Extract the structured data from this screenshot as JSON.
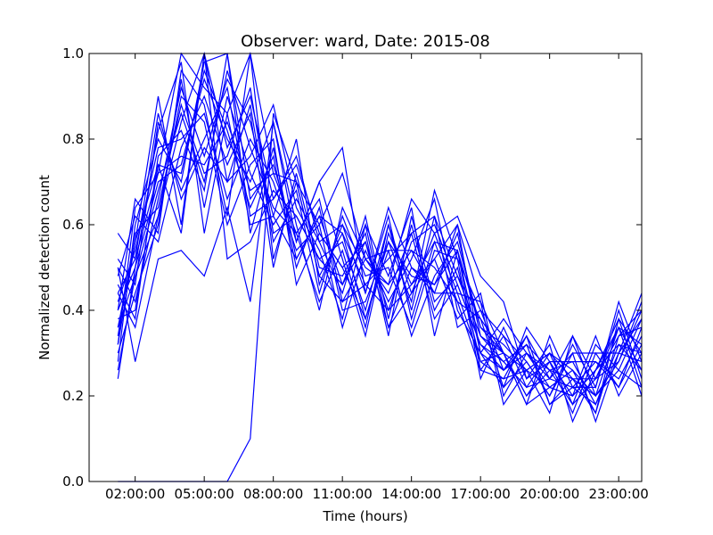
{
  "chart_data": {
    "type": "line",
    "title": "Observer: ward, Date: 2015-08",
    "xlabel": "Time (hours)",
    "ylabel": "Normalized detection count",
    "xlim": [
      0.0,
      24.0
    ],
    "ylim": [
      0.0,
      1.0
    ],
    "x_ticks": [
      {
        "value": 2,
        "label": "02:00:00"
      },
      {
        "value": 5,
        "label": "05:00:00"
      },
      {
        "value": 8,
        "label": "08:00:00"
      },
      {
        "value": 11,
        "label": "11:00:00"
      },
      {
        "value": 14,
        "label": "14:00:00"
      },
      {
        "value": 17,
        "label": "17:00:00"
      },
      {
        "value": 20,
        "label": "20:00:00"
      },
      {
        "value": 23,
        "label": "23:00:00"
      }
    ],
    "y_ticks": [
      {
        "value": 0.0,
        "label": "0.0"
      },
      {
        "value": 0.2,
        "label": "0.2"
      },
      {
        "value": 0.4,
        "label": "0.4"
      },
      {
        "value": 0.6,
        "label": "0.6"
      },
      {
        "value": 0.8,
        "label": "0.8"
      },
      {
        "value": 1.0,
        "label": "1.0"
      }
    ],
    "grid": false,
    "line_color": "#0000ff",
    "x": [
      1.25,
      2.0,
      3.0,
      4.0,
      5.0,
      6.0,
      7.0,
      8.0,
      9.0,
      10.0,
      11.0,
      12.0,
      13.0,
      14.0,
      15.0,
      16.0,
      17.0,
      18.0,
      19.0,
      20.0,
      21.0,
      22.0,
      23.0,
      24.0
    ],
    "series": [
      {
        "values": [
          0.44,
          0.52,
          0.72,
          1.0,
          0.92,
          0.86,
          1.0,
          0.72,
          0.58,
          0.66,
          0.42,
          0.52,
          0.44,
          0.58,
          0.62,
          0.48,
          0.34,
          0.3,
          0.26,
          0.22,
          0.2,
          0.26,
          0.38,
          0.3
        ]
      },
      {
        "values": [
          0.36,
          0.48,
          0.62,
          0.84,
          1.0,
          0.78,
          0.9,
          0.66,
          0.74,
          0.58,
          0.5,
          0.38,
          0.56,
          0.42,
          0.68,
          0.52,
          0.4,
          0.26,
          0.32,
          0.18,
          0.24,
          0.16,
          0.34,
          0.4
        ]
      },
      {
        "values": [
          0.28,
          0.6,
          0.8,
          0.7,
          0.98,
          1.0,
          0.58,
          0.78,
          0.52,
          0.62,
          0.46,
          0.56,
          0.36,
          0.5,
          0.44,
          0.6,
          0.3,
          0.22,
          0.36,
          0.28,
          0.16,
          0.3,
          0.22,
          0.36
        ]
      },
      {
        "values": [
          0.5,
          0.42,
          0.66,
          0.92,
          0.76,
          0.94,
          0.84,
          0.62,
          0.8,
          0.46,
          0.6,
          0.44,
          0.62,
          0.38,
          0.56,
          0.42,
          0.38,
          0.3,
          0.18,
          0.34,
          0.22,
          0.22,
          0.42,
          0.28
        ]
      },
      {
        "values": [
          0.32,
          0.56,
          0.9,
          0.6,
          1.0,
          0.7,
          0.76,
          0.88,
          0.64,
          0.54,
          0.38,
          0.6,
          0.48,
          0.64,
          0.34,
          0.54,
          0.26,
          0.34,
          0.28,
          0.2,
          0.3,
          0.14,
          0.3,
          0.44
        ]
      },
      {
        "values": [
          0.46,
          0.38,
          0.76,
          0.82,
          0.68,
          1.0,
          0.66,
          0.74,
          0.56,
          0.7,
          0.52,
          0.34,
          0.58,
          0.46,
          0.52,
          0.38,
          0.44,
          0.2,
          0.3,
          0.26,
          0.18,
          0.32,
          0.26,
          0.22
        ]
      },
      {
        "values": [
          0.4,
          0.66,
          0.58,
          0.96,
          0.88,
          0.62,
          1.0,
          0.52,
          0.7,
          0.48,
          0.58,
          0.46,
          0.4,
          0.56,
          0.6,
          0.46,
          0.32,
          0.28,
          0.22,
          0.3,
          0.26,
          0.2,
          0.36,
          0.32
        ]
      },
      {
        "values": [
          0.24,
          0.5,
          0.7,
          0.74,
          0.94,
          0.8,
          0.7,
          0.84,
          0.6,
          0.4,
          0.64,
          0.52,
          0.54,
          0.34,
          0.48,
          0.56,
          0.36,
          0.32,
          0.26,
          0.16,
          0.34,
          0.24,
          0.28,
          0.4
        ]
      },
      {
        "values": [
          0.52,
          0.46,
          0.84,
          0.68,
          0.8,
          0.92,
          0.62,
          0.66,
          0.76,
          0.56,
          0.44,
          0.62,
          0.38,
          0.6,
          0.4,
          0.5,
          0.28,
          0.24,
          0.34,
          0.24,
          0.22,
          0.18,
          0.32,
          0.26
        ]
      },
      {
        "values": [
          0.34,
          0.58,
          0.64,
          0.88,
          0.72,
          0.76,
          0.92,
          0.58,
          0.62,
          0.52,
          0.56,
          0.4,
          0.6,
          0.44,
          0.58,
          0.44,
          0.42,
          0.3,
          0.2,
          0.28,
          0.28,
          0.28,
          0.24,
          0.34
        ]
      },
      {
        "values": [
          0.42,
          0.54,
          0.78,
          0.8,
          0.86,
          0.66,
          0.8,
          0.7,
          0.54,
          0.6,
          0.36,
          0.54,
          0.42,
          0.52,
          0.66,
          0.4,
          0.3,
          0.26,
          0.3,
          0.22,
          0.2,
          0.34,
          0.2,
          0.3
        ]
      },
      {
        "values": [
          0.3,
          0.44,
          0.6,
          0.94,
          0.64,
          0.9,
          0.72,
          0.6,
          0.68,
          0.44,
          0.62,
          0.48,
          0.5,
          0.36,
          0.54,
          0.52,
          0.24,
          0.36,
          0.24,
          0.32,
          0.14,
          0.26,
          0.36,
          0.2
        ]
      },
      {
        "values": [
          0.48,
          0.62,
          0.56,
          0.78,
          0.9,
          0.74,
          0.86,
          0.5,
          0.72,
          0.5,
          0.48,
          0.58,
          0.34,
          0.62,
          0.42,
          0.48,
          0.38,
          0.22,
          0.28,
          0.2,
          0.32,
          0.22,
          0.4,
          0.24
        ]
      },
      {
        "values": [
          0.38,
          0.4,
          0.74,
          0.72,
          0.96,
          0.82,
          0.64,
          0.76,
          0.5,
          0.64,
          0.4,
          0.42,
          0.56,
          0.48,
          0.46,
          0.58,
          0.34,
          0.28,
          0.32,
          0.26,
          0.24,
          0.2,
          0.26,
          0.38
        ]
      },
      {
        "values": [
          0.26,
          0.48,
          0.68,
          0.86,
          0.7,
          0.96,
          0.78,
          0.64,
          0.58,
          0.42,
          0.54,
          0.36,
          0.6,
          0.4,
          0.62,
          0.36,
          0.4,
          0.34,
          0.22,
          0.24,
          0.3,
          0.3,
          0.3,
          0.28
        ]
      },
      {
        "values": [
          0.58,
          0.52,
          0.86,
          0.66,
          0.78,
          0.7,
          0.88,
          0.56,
          0.66,
          0.56,
          0.6,
          0.5,
          0.46,
          0.54,
          0.5,
          0.42,
          0.26,
          0.24,
          0.26,
          0.3,
          0.18,
          0.24,
          0.34,
          0.36
        ]
      },
      {
        "values": [
          0.44,
          0.36,
          0.62,
          0.9,
          0.84,
          0.6,
          0.74,
          0.8,
          0.46,
          0.58,
          0.5,
          0.56,
          0.4,
          0.46,
          0.56,
          0.54,
          0.36,
          0.3,
          0.18,
          0.22,
          0.26,
          0.16,
          0.38,
          0.22
        ]
      },
      {
        "values": [
          0.32,
          0.64,
          0.72,
          0.76,
          0.74,
          0.84,
          0.68,
          0.72,
          0.7,
          0.48,
          0.42,
          0.46,
          0.52,
          0.58,
          0.38,
          0.46,
          0.32,
          0.26,
          0.34,
          0.18,
          0.22,
          0.28,
          0.22,
          0.32
        ]
      },
      {
        "values": [
          0.0,
          0.0,
          0.0,
          0.0,
          0.0,
          0.0,
          0.1,
          0.86,
          0.7,
          0.6,
          0.72,
          0.52,
          0.46,
          0.66,
          0.58,
          0.62,
          0.48,
          0.42,
          0.24,
          0.28,
          0.2,
          0.26,
          0.32,
          0.3
        ]
      },
      {
        "values": [
          0.5,
          0.28,
          0.52,
          0.54,
          0.48,
          0.64,
          0.42,
          0.84,
          0.56,
          0.7,
          0.78,
          0.44,
          0.64,
          0.5,
          0.46,
          0.54,
          0.3,
          0.38,
          0.3,
          0.24,
          0.34,
          0.2,
          0.28,
          0.42
        ]
      },
      {
        "values": [
          0.36,
          0.56,
          0.74,
          0.58,
          1.0,
          0.52,
          0.56,
          0.68,
          0.62,
          0.52,
          0.46,
          0.6,
          0.36,
          0.44,
          0.52,
          0.6,
          0.42,
          0.18,
          0.26,
          0.3,
          0.24,
          0.24,
          0.36,
          0.26
        ]
      },
      {
        "values": [
          0.4,
          0.5,
          0.82,
          0.98,
          0.58,
          0.86,
          0.6,
          0.62,
          0.52,
          0.62,
          0.58,
          0.38,
          0.54,
          0.54,
          0.44,
          0.44,
          0.28,
          0.3,
          0.2,
          0.26,
          0.28,
          0.18,
          0.3,
          0.38
        ]
      }
    ]
  }
}
